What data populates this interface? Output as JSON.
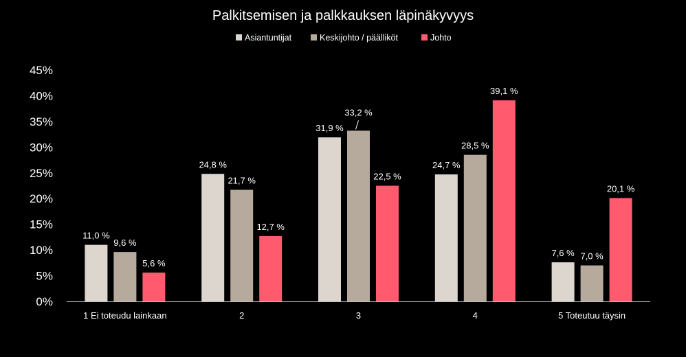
{
  "chart_data": {
    "type": "bar",
    "title": "Palkitsemisen ja palkkauksen läpinäkyvyys",
    "categories": [
      "1 Ei toteudu lainkaan",
      "2",
      "3",
      "4",
      "5 Toteutuu täysin"
    ],
    "ylim": [
      0,
      45
    ],
    "yticks": [
      0,
      5,
      10,
      15,
      20,
      25,
      30,
      35,
      40,
      45
    ],
    "ytick_labels": [
      "0%",
      "5%",
      "10%",
      "15%",
      "20%",
      "25%",
      "30%",
      "35%",
      "40%",
      "45%"
    ],
    "grid": false,
    "legend_position": "top",
    "series": [
      {
        "name": "Asiantuntijat",
        "color": "#dcd6cf",
        "values": [
          11.0,
          24.8,
          31.9,
          24.7,
          7.6
        ],
        "labels": [
          "11,0 %",
          "24,8 %",
          "31,9 %",
          "24,7 %",
          "7,6 %"
        ]
      },
      {
        "name": "Keskijohto / päälliköt",
        "color": "#b5aa9c",
        "values": [
          9.6,
          21.7,
          33.2,
          28.5,
          7.0
        ],
        "labels": [
          "9,6 %",
          "21,7 %",
          "33,2 %",
          "28,5 %",
          "7,0 %"
        ]
      },
      {
        "name": "Johto",
        "color": "#ff5a6e",
        "values": [
          5.6,
          12.7,
          22.5,
          39.1,
          20.1
        ],
        "labels": [
          "5,6 %",
          "12,7 %",
          "22,5 %",
          "39,1 %",
          "20,1 %"
        ]
      }
    ]
  }
}
